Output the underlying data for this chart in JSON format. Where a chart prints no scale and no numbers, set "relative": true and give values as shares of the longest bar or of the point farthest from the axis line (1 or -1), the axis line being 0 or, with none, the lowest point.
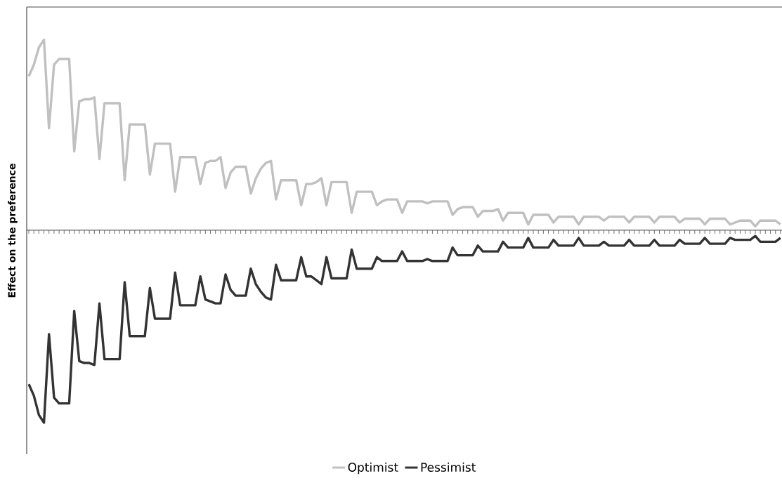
{
  "chart_data": {
    "type": "line",
    "relative": true,
    "ylabel": "Effect on the preference",
    "categories": [
      null,
      null,
      null,
      null,
      null,
      null,
      null,
      null,
      null,
      null,
      null,
      null,
      null,
      null,
      null,
      null,
      null,
      null,
      null,
      null,
      null,
      null,
      null,
      null,
      null,
      null,
      null,
      null,
      null,
      null,
      null,
      null,
      null,
      null,
      null,
      null,
      null,
      null,
      null,
      null,
      null,
      null,
      null,
      null,
      null,
      null,
      null,
      null,
      null,
      null,
      null,
      null,
      null,
      null,
      null,
      null,
      null,
      null,
      null,
      null,
      null,
      null,
      null,
      null,
      null,
      null,
      null,
      null,
      null,
      null,
      null,
      null,
      null,
      null,
      null,
      null,
      null,
      null,
      null,
      null,
      null,
      null,
      null,
      null,
      null,
      null,
      null,
      null,
      null,
      null,
      null,
      null,
      null,
      null,
      null,
      null,
      null,
      null,
      null,
      null,
      null,
      null,
      null,
      null,
      null,
      null,
      null,
      null,
      null,
      null,
      null,
      null,
      null,
      null,
      null,
      null,
      null,
      null,
      null,
      null,
      null,
      null,
      null,
      null,
      null,
      null,
      null,
      null,
      null,
      null,
      null,
      null,
      null,
      null,
      null,
      null,
      null,
      null,
      null,
      null,
      null,
      null,
      null,
      null,
      null,
      null,
      null,
      null,
      null,
      null
    ],
    "series": [
      {
        "name": "Optimist",
        "color": "#c0c0c0",
        "values": [
          0.8,
          0.86,
          0.95,
          0.99,
          0.53,
          0.86,
          0.89,
          0.89,
          0.89,
          0.41,
          0.67,
          0.68,
          0.68,
          0.69,
          0.37,
          0.66,
          0.66,
          0.66,
          0.66,
          0.26,
          0.55,
          0.55,
          0.55,
          0.55,
          0.29,
          0.45,
          0.45,
          0.45,
          0.45,
          0.2,
          0.38,
          0.38,
          0.38,
          0.38,
          0.24,
          0.35,
          0.36,
          0.36,
          0.38,
          0.22,
          0.3,
          0.33,
          0.33,
          0.33,
          0.19,
          0.27,
          0.32,
          0.35,
          0.36,
          0.16,
          0.26,
          0.26,
          0.26,
          0.26,
          0.13,
          0.24,
          0.24,
          0.25,
          0.27,
          0.13,
          0.25,
          0.25,
          0.25,
          0.25,
          0.09,
          0.2,
          0.2,
          0.2,
          0.2,
          0.13,
          0.15,
          0.16,
          0.16,
          0.16,
          0.09,
          0.15,
          0.15,
          0.15,
          0.15,
          0.14,
          0.15,
          0.15,
          0.15,
          0.15,
          0.08,
          0.11,
          0.12,
          0.12,
          0.12,
          0.07,
          0.1,
          0.1,
          0.1,
          0.11,
          0.05,
          0.09,
          0.09,
          0.09,
          0.09,
          0.03,
          0.08,
          0.08,
          0.08,
          0.08,
          0.04,
          0.07,
          0.07,
          0.07,
          0.07,
          0.03,
          0.07,
          0.07,
          0.07,
          0.07,
          0.05,
          0.07,
          0.07,
          0.07,
          0.07,
          0.04,
          0.07,
          0.07,
          0.07,
          0.07,
          0.04,
          0.07,
          0.07,
          0.07,
          0.07,
          0.04,
          0.06,
          0.06,
          0.06,
          0.06,
          0.03,
          0.06,
          0.06,
          0.06,
          0.06,
          0.03,
          0.04,
          0.05,
          0.05,
          0.05,
          0.02,
          0.05,
          0.05,
          0.05,
          0.05,
          0.03
        ]
      },
      {
        "name": "Pessimist",
        "color": "#333333",
        "values": [
          -0.8,
          -0.86,
          -0.96,
          -1.0,
          -0.54,
          -0.87,
          -0.9,
          -0.9,
          -0.9,
          -0.42,
          -0.68,
          -0.69,
          -0.69,
          -0.7,
          -0.38,
          -0.67,
          -0.67,
          -0.67,
          -0.67,
          -0.27,
          -0.55,
          -0.55,
          -0.55,
          -0.55,
          -0.3,
          -0.46,
          -0.46,
          -0.46,
          -0.46,
          -0.22,
          -0.39,
          -0.39,
          -0.39,
          -0.39,
          -0.24,
          -0.36,
          -0.37,
          -0.38,
          -0.38,
          -0.23,
          -0.31,
          -0.34,
          -0.34,
          -0.34,
          -0.2,
          -0.28,
          -0.32,
          -0.35,
          -0.36,
          -0.18,
          -0.26,
          -0.26,
          -0.26,
          -0.26,
          -0.14,
          -0.24,
          -0.24,
          -0.26,
          -0.28,
          -0.14,
          -0.25,
          -0.25,
          -0.25,
          -0.25,
          -0.1,
          -0.2,
          -0.2,
          -0.2,
          -0.2,
          -0.14,
          -0.16,
          -0.16,
          -0.16,
          -0.16,
          -0.11,
          -0.16,
          -0.16,
          -0.16,
          -0.16,
          -0.15,
          -0.16,
          -0.16,
          -0.16,
          -0.16,
          -0.09,
          -0.13,
          -0.13,
          -0.13,
          -0.13,
          -0.08,
          -0.11,
          -0.11,
          -0.11,
          -0.11,
          -0.06,
          -0.09,
          -0.09,
          -0.09,
          -0.09,
          -0.04,
          -0.09,
          -0.09,
          -0.09,
          -0.09,
          -0.05,
          -0.08,
          -0.08,
          -0.08,
          -0.08,
          -0.04,
          -0.08,
          -0.08,
          -0.08,
          -0.08,
          -0.06,
          -0.08,
          -0.08,
          -0.08,
          -0.08,
          -0.05,
          -0.08,
          -0.08,
          -0.08,
          -0.08,
          -0.05,
          -0.08,
          -0.08,
          -0.08,
          -0.08,
          -0.05,
          -0.07,
          -0.07,
          -0.07,
          -0.07,
          -0.04,
          -0.07,
          -0.07,
          -0.07,
          -0.07,
          -0.04,
          -0.05,
          -0.05,
          -0.05,
          -0.05,
          -0.03,
          -0.06,
          -0.06,
          -0.06,
          -0.06,
          -0.04
        ]
      }
    ],
    "legend": "bottom",
    "marker": "none",
    "line_style": "solid"
  }
}
